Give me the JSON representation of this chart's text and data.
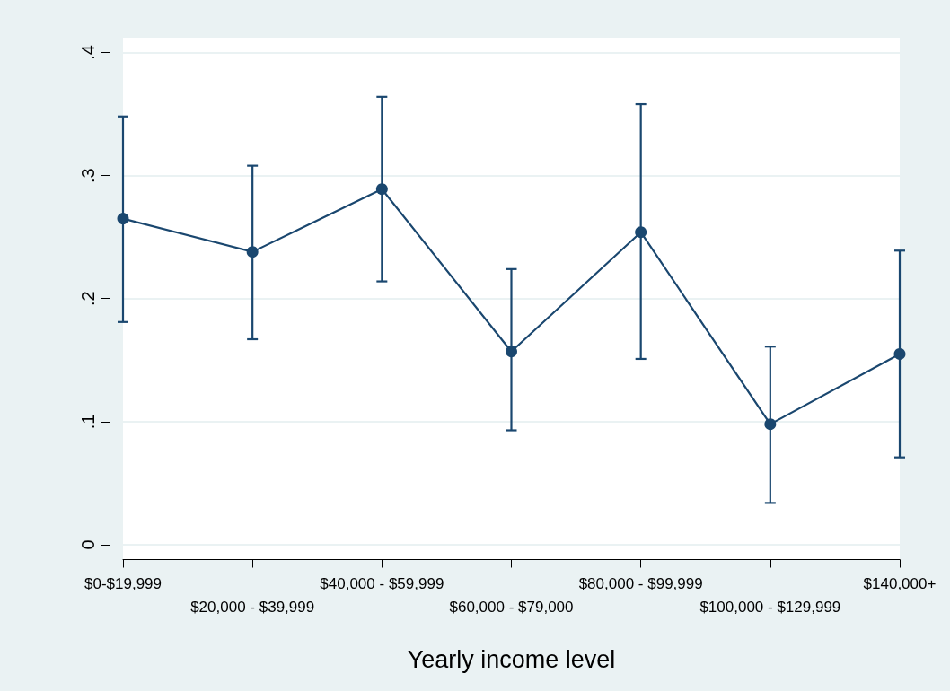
{
  "chart_data": {
    "type": "line",
    "xlabel": "Yearly income level",
    "categories": [
      "$0-$19,999",
      "$20,000 - $39,999",
      "$40,000 - $59,999",
      "$60,000 - $79,000",
      "$80,000 - $99,999",
      "$100,000 - $129,999",
      "$140,000+"
    ],
    "series": [
      {
        "color": "#1a476f",
        "values": [
          0.265,
          0.238,
          0.289,
          0.157,
          0.254,
          0.098,
          0.155
        ],
        "errors": [
          [
            0.181,
            0.348
          ],
          [
            0.167,
            0.308
          ],
          [
            0.214,
            0.364
          ],
          [
            0.093,
            0.224
          ],
          [
            0.151,
            0.358
          ],
          [
            0.034,
            0.161
          ],
          [
            0.071,
            0.239
          ]
        ]
      }
    ],
    "ylim": [
      -0.012,
      0.412
    ],
    "yticks": [
      {
        "value": 0,
        "label": "0"
      },
      {
        "value": 0.1,
        "label": ".1"
      },
      {
        "value": 0.2,
        "label": ".2"
      },
      {
        "value": 0.3,
        "label": ".3"
      },
      {
        "value": 0.4,
        "label": ".4"
      }
    ],
    "grid": "y",
    "marker": "circle",
    "line_style": "solid"
  }
}
